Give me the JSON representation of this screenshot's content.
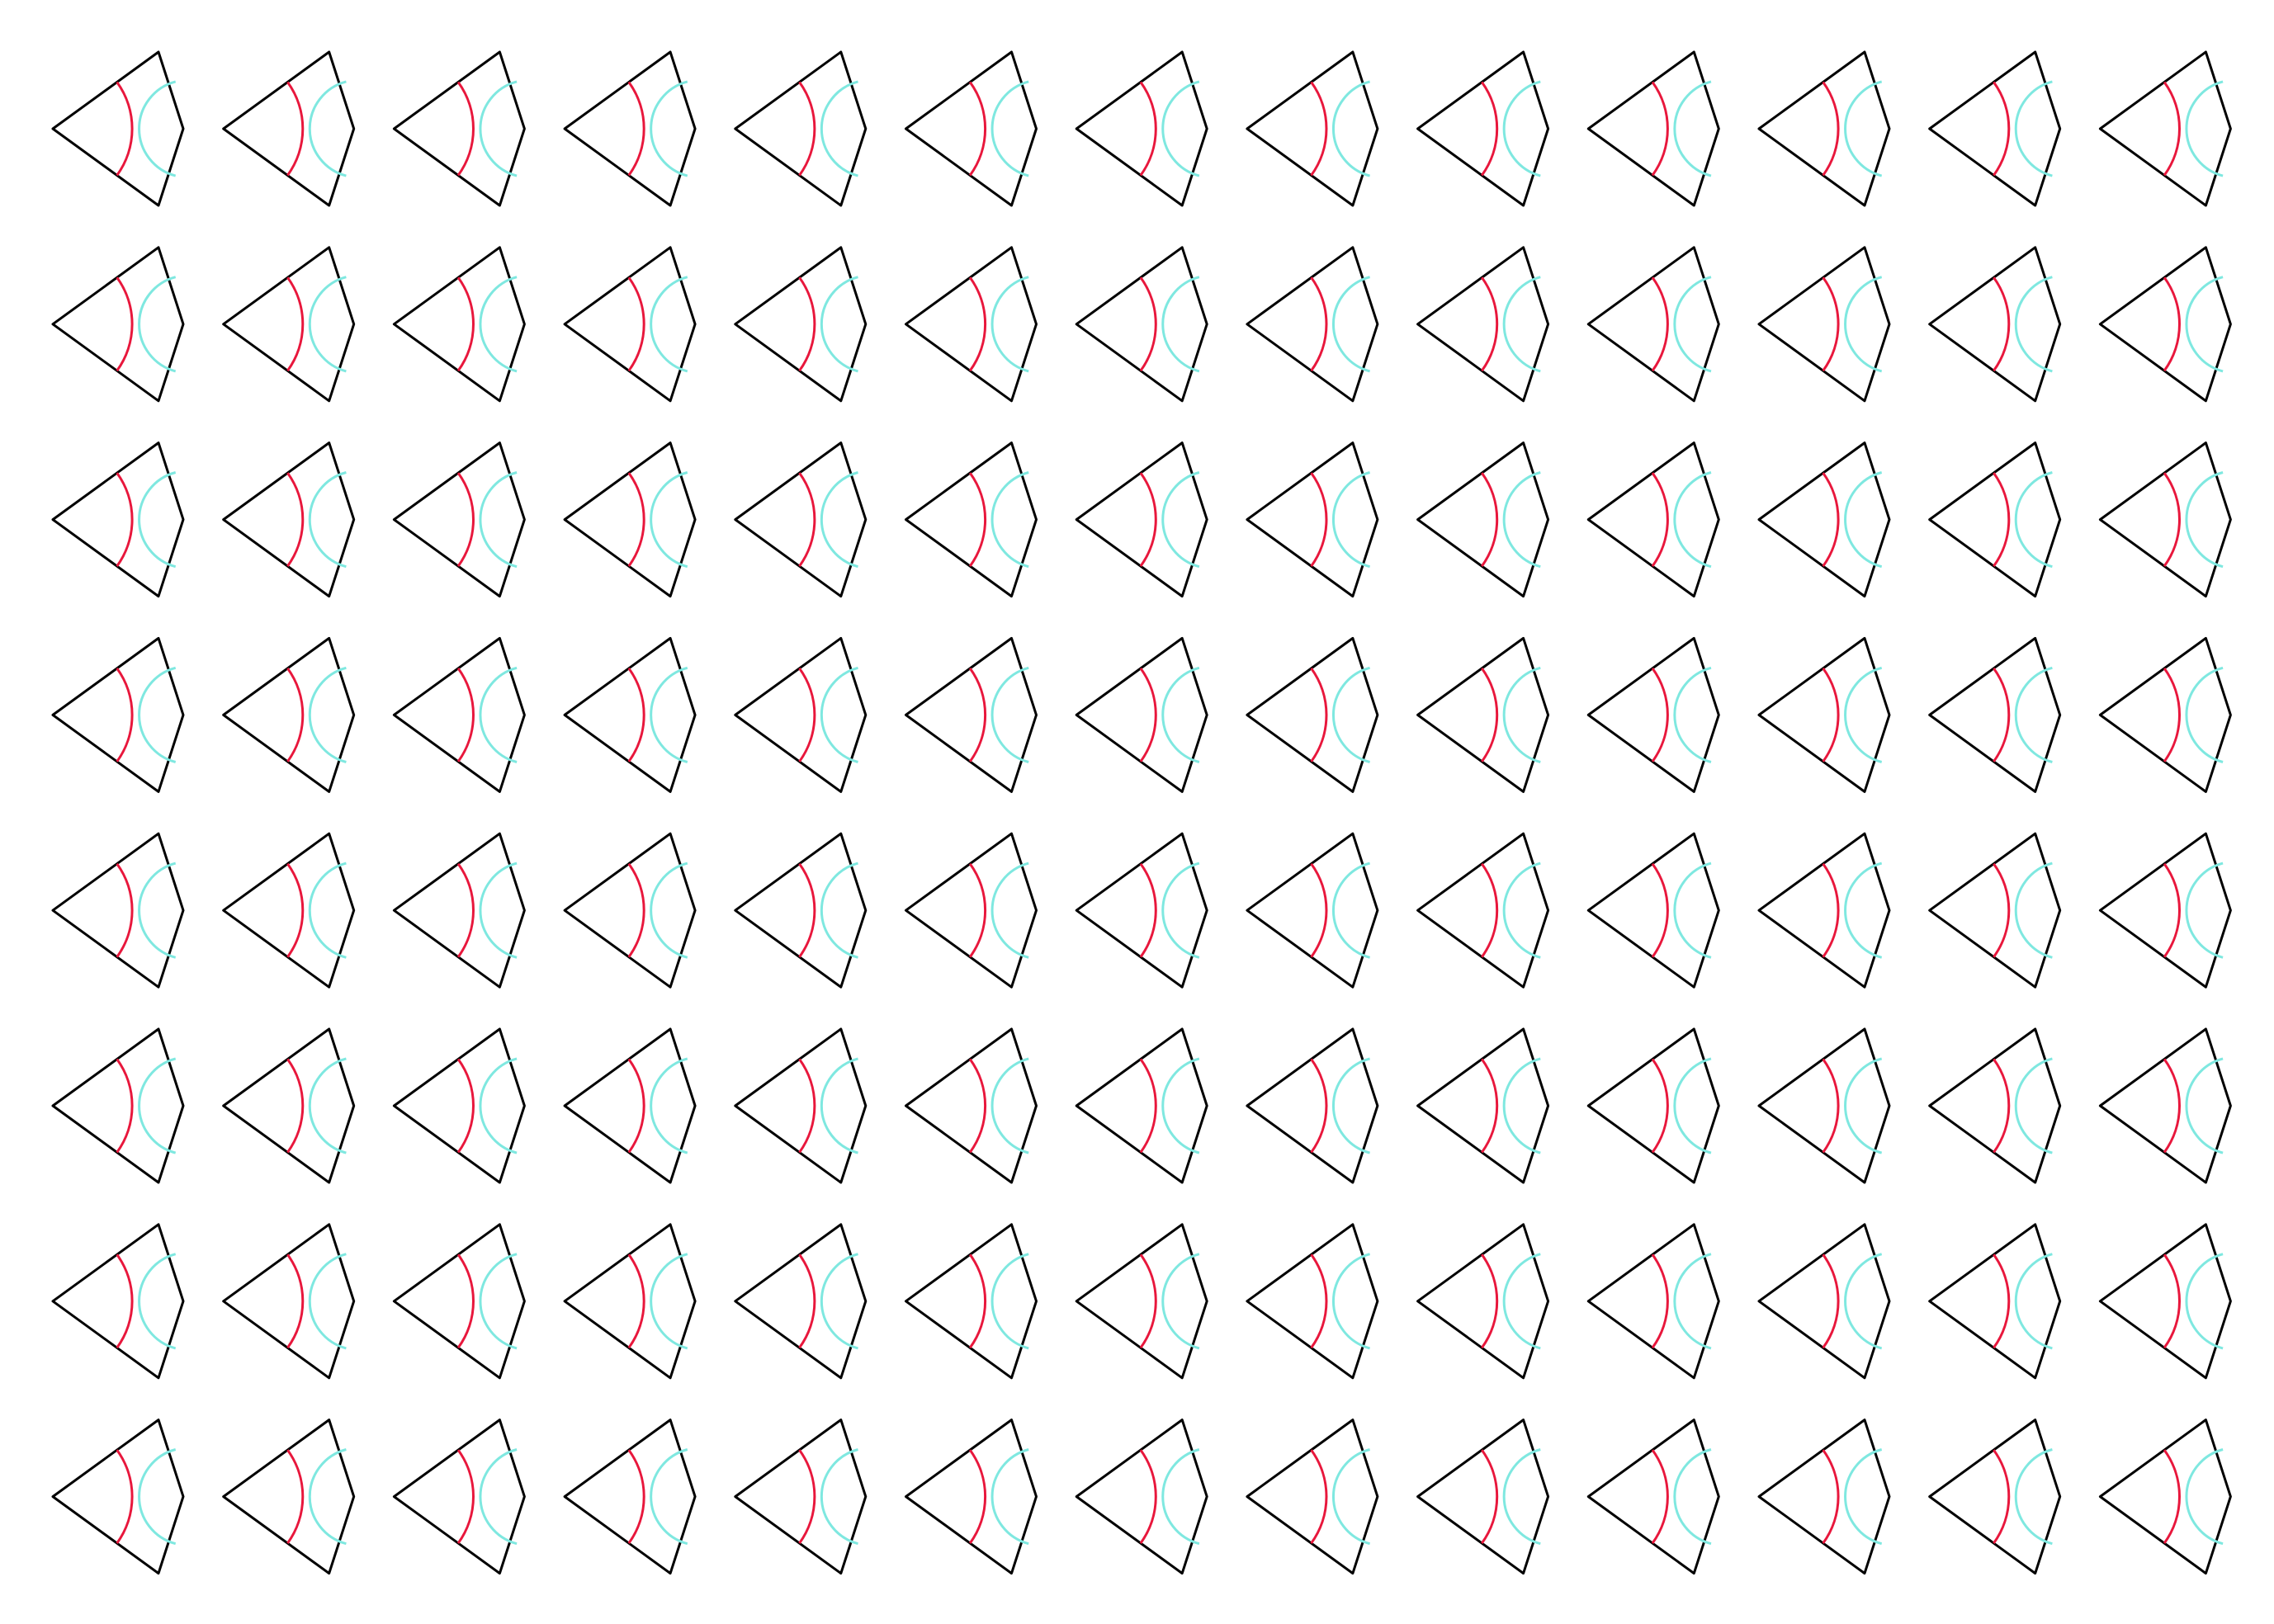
{
  "sheet": {
    "rows": 8,
    "columns": 13,
    "tile_count": 104,
    "shape": "kite-tile",
    "background_color": "#ffffff",
    "colors": {
      "outline": "#000000",
      "arc_inner": "#e8173c",
      "arc_outer": "#7fe8e0"
    }
  }
}
